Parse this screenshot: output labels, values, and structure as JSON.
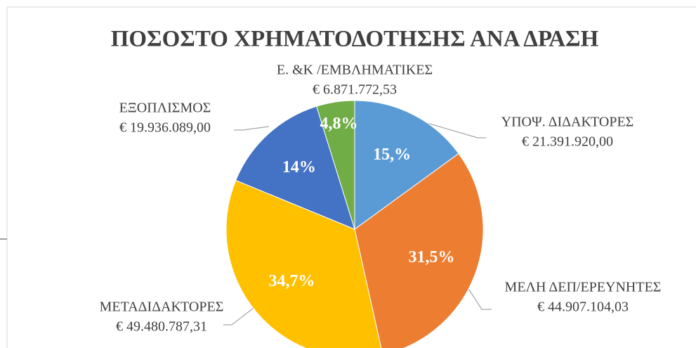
{
  "chart_data": {
    "type": "pie",
    "title": "ΠΟΣΟΣΤΟ ΧΡΗΜΑΤΟΔΟΤΗΣΗΣ ΑΝΑ ΔΡΑΣΗ",
    "categories": [
      "ΥΠΟΨ. ΔΙΔΑΚΤΟΡΕΣ",
      "ΜΕΛΗ ΔΕΠ/ΕΡΕΥΝΗΤΕΣ",
      "ΜΕΤΑΔΙΔΑΚΤΟΡΕΣ",
      "ΕΞΟΠΛΙΣΜΟΣ",
      "Ε. &Κ /ΕΜΒΛΗΜΑΤΙΚΕΣ"
    ],
    "amount_labels": [
      "€ 21.391.920,00",
      "€ 44.907.104,03",
      "€ 49.480.787,31",
      "€ 19.936.089,00",
      "€ 6.871.772,53"
    ],
    "values": [
      15,
      31.5,
      34.7,
      14,
      4.8
    ],
    "value_labels": [
      "15,%",
      "31,5%",
      "34,7%",
      "14%",
      "4,8%"
    ],
    "colors": [
      "#5b9bd5",
      "#ed7d31",
      "#ffc000",
      "#4472c4",
      "#70ad47"
    ]
  }
}
